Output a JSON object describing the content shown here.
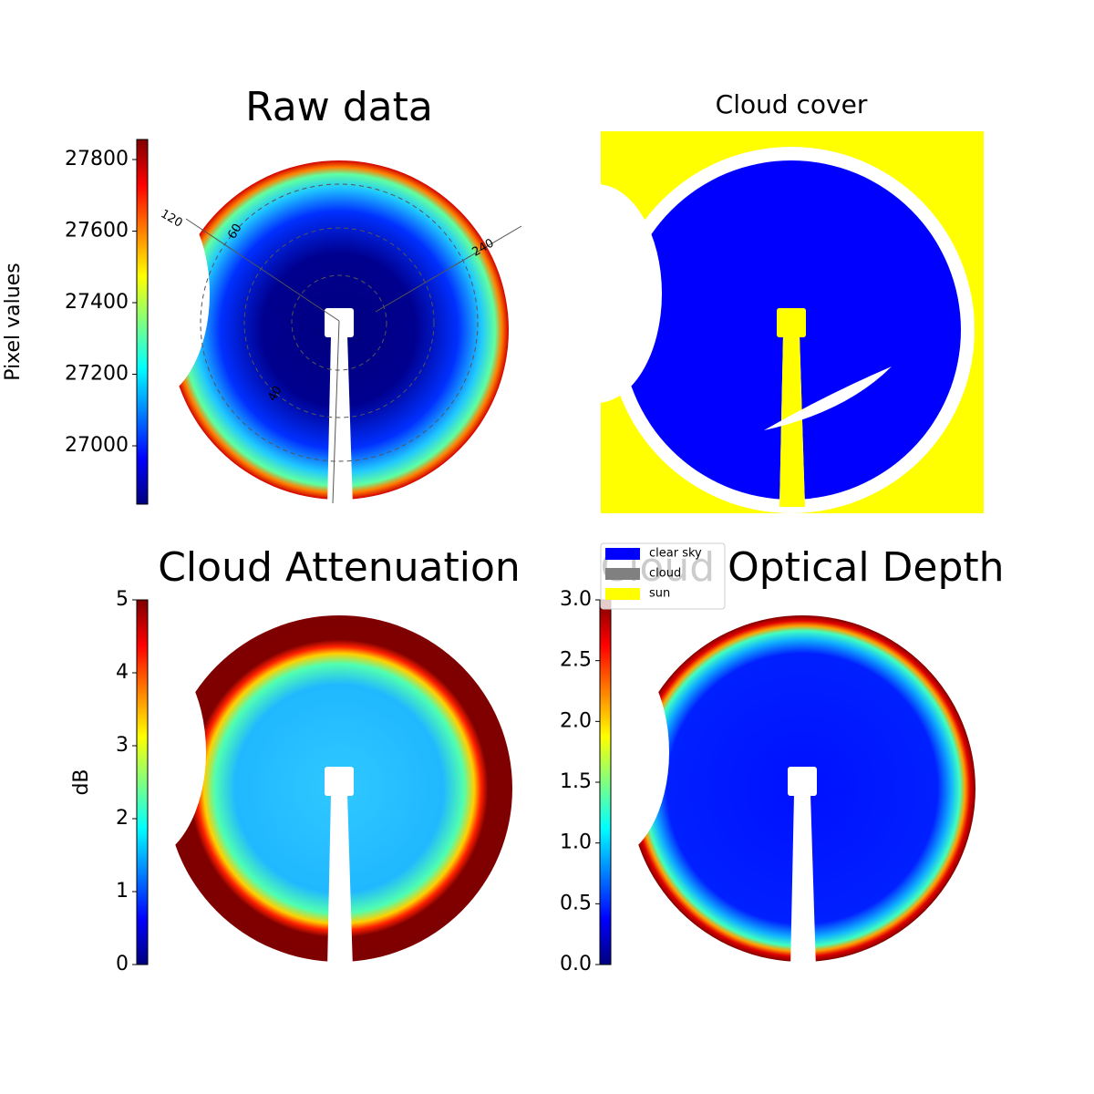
{
  "chart_data": [
    {
      "type": "image",
      "title": "Raw data",
      "colorbar_label": "Pixel values",
      "clim": [
        26837,
        27856
      ],
      "cticks": [
        27000,
        27200,
        27400,
        27600,
        27800
      ],
      "annotations": [
        "120",
        "60",
        "240",
        "40"
      ]
    },
    {
      "type": "categorical-image",
      "title": "Cloud cover",
      "legend": [
        {
          "name": "clear sky",
          "color": "#0000ff"
        },
        {
          "name": "cloud",
          "color": "#808080"
        },
        {
          "name": "sun",
          "color": "#ffff00"
        }
      ]
    },
    {
      "type": "image",
      "title": "Cloud Attenuation",
      "colorbar_label": "dB",
      "clim": [
        0,
        5
      ],
      "cticks": [
        0,
        1,
        2,
        3,
        4,
        5
      ]
    },
    {
      "type": "image",
      "title": "Cloud Optical Depth",
      "clim": [
        0,
        3
      ],
      "cticks": [
        {
          "value": 0,
          "label": "0.0"
        },
        0.5,
        {
          "value": 1,
          "label": "1.0"
        },
        1.5,
        {
          "value": 2,
          "label": "2.0"
        },
        2.5,
        {
          "value": 3,
          "label": "3.0"
        }
      ]
    }
  ]
}
